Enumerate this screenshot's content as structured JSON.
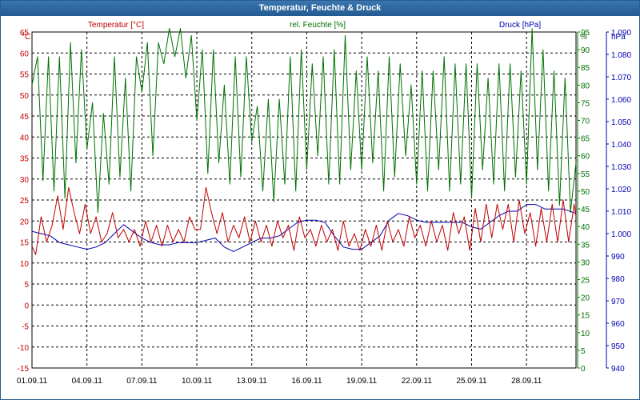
{
  "window": {
    "title": "Temperatur, Feuchte & Druck"
  },
  "colors": {
    "temperature": "#c00000",
    "humidity": "#007000",
    "pressure": "#0000b0",
    "grid": "#000000",
    "titlebar": "#2a5d8f"
  },
  "chart_data": {
    "type": "line",
    "grid": true,
    "x_ticks": [
      "01.09.11",
      "04.09.11",
      "07.09.11",
      "10.09.11",
      "13.09.11",
      "16.09.11",
      "19.09.11",
      "22.09.11",
      "25.09.11",
      "28.09.11"
    ],
    "xlim_days": [
      1,
      30.7
    ],
    "axes": {
      "left": {
        "unit": "°C",
        "ticks": [
          "65",
          "60",
          "55",
          "50",
          "45",
          "40",
          "35",
          "30",
          "25",
          "20",
          "15",
          "10",
          "5",
          "0",
          "-5",
          "-10",
          "-15"
        ],
        "ylim": [
          -15,
          65
        ]
      },
      "right1": {
        "unit": "%",
        "ticks": [
          "95",
          "90",
          "85",
          "80",
          "75",
          "70",
          "65",
          "60",
          "55",
          "50",
          "45",
          "40",
          "35",
          "30",
          "25",
          "20",
          "15",
          "10",
          "5",
          "0"
        ],
        "ylim": [
          0,
          95
        ]
      },
      "right2": {
        "unit": "hPa",
        "ticks": [
          "1.090",
          "1.080",
          "1.070",
          "1.060",
          "1.050",
          "1.040",
          "1.030",
          "1.020",
          "1.010",
          "1.000",
          "990",
          "980",
          "970",
          "960",
          "950",
          "940"
        ],
        "ylim": [
          940,
          1090
        ]
      }
    },
    "series": [
      {
        "name": "Temperatur [°C]",
        "axis": "left",
        "x": [
          1.0,
          1.2,
          1.5,
          1.8,
          2.1,
          2.4,
          2.7,
          3.0,
          3.3,
          3.6,
          3.9,
          4.2,
          4.5,
          4.8,
          5.1,
          5.4,
          5.7,
          6.0,
          6.3,
          6.6,
          6.9,
          7.2,
          7.5,
          7.8,
          8.1,
          8.4,
          8.7,
          9.0,
          9.3,
          9.6,
          9.9,
          10.2,
          10.5,
          10.8,
          11.1,
          11.4,
          11.7,
          12.0,
          12.3,
          12.6,
          12.9,
          13.2,
          13.5,
          13.8,
          14.1,
          14.4,
          14.7,
          15.0,
          15.3,
          15.6,
          15.9,
          16.2,
          16.5,
          16.8,
          17.1,
          17.4,
          17.7,
          18.0,
          18.3,
          18.6,
          18.9,
          19.2,
          19.5,
          19.8,
          20.1,
          20.4,
          20.7,
          21.0,
          21.3,
          21.6,
          21.9,
          22.2,
          22.5,
          22.8,
          23.1,
          23.4,
          23.7,
          24.0,
          24.3,
          24.6,
          24.9,
          25.2,
          25.5,
          25.8,
          26.1,
          26.4,
          26.7,
          27.0,
          27.3,
          27.6,
          27.9,
          28.2,
          28.5,
          28.8,
          29.1,
          29.4,
          29.7,
          30.0,
          30.3,
          30.6,
          30.7
        ],
        "values": [
          14,
          12,
          21,
          15,
          19,
          26,
          18,
          28,
          22,
          17,
          24,
          17,
          21,
          15,
          17,
          22,
          16,
          18,
          15,
          18,
          14,
          20,
          15,
          19,
          14,
          19,
          15,
          18,
          15,
          21,
          18,
          18,
          28,
          22,
          17,
          22,
          15,
          19,
          16,
          21,
          15,
          20,
          15,
          19,
          14,
          20,
          16,
          19,
          13,
          21,
          16,
          18,
          14,
          19,
          15,
          18,
          13,
          20,
          14,
          17,
          13,
          18,
          14,
          19,
          13,
          20,
          15,
          18,
          14,
          21,
          16,
          19,
          14,
          20,
          15,
          19,
          13,
          22,
          17,
          21,
          13,
          23,
          15,
          24,
          16,
          24,
          18,
          24,
          15,
          25,
          17,
          22,
          14,
          23,
          15,
          24,
          15,
          25,
          15,
          24,
          21
        ]
      },
      {
        "name": "rel. Feuchte [%]",
        "axis": "right1",
        "x": [
          1.0,
          1.3,
          1.6,
          1.9,
          2.2,
          2.5,
          2.8,
          3.1,
          3.4,
          3.7,
          4.0,
          4.3,
          4.6,
          4.9,
          5.2,
          5.5,
          5.8,
          6.1,
          6.4,
          6.7,
          7.0,
          7.3,
          7.6,
          7.9,
          8.2,
          8.5,
          8.8,
          9.1,
          9.4,
          9.7,
          10.0,
          10.3,
          10.6,
          10.9,
          11.2,
          11.5,
          11.8,
          12.1,
          12.4,
          12.7,
          13.0,
          13.3,
          13.6,
          13.9,
          14.2,
          14.5,
          14.8,
          15.1,
          15.4,
          15.7,
          16.0,
          16.3,
          16.6,
          16.9,
          17.2,
          17.5,
          17.8,
          18.1,
          18.4,
          18.7,
          19.0,
          19.3,
          19.6,
          19.9,
          20.2,
          20.5,
          20.8,
          21.1,
          21.4,
          21.7,
          22.0,
          22.3,
          22.6,
          22.9,
          23.2,
          23.5,
          23.8,
          24.1,
          24.4,
          24.7,
          25.0,
          25.3,
          25.6,
          25.9,
          26.2,
          26.5,
          26.8,
          27.1,
          27.4,
          27.7,
          28.0,
          28.3,
          28.6,
          28.9,
          29.2,
          29.5,
          29.8,
          30.1,
          30.4,
          30.7
        ],
        "values": [
          80,
          88,
          53,
          88,
          50,
          88,
          48,
          92,
          58,
          90,
          62,
          75,
          44,
          72,
          52,
          88,
          54,
          82,
          50,
          88,
          78,
          92,
          60,
          92,
          86,
          96,
          88,
          96,
          82,
          94,
          70,
          90,
          55,
          90,
          58,
          80,
          52,
          88,
          54,
          88,
          64,
          74,
          50,
          76,
          47,
          76,
          52,
          88,
          50,
          90,
          56,
          86,
          60,
          88,
          52,
          90,
          52,
          94,
          56,
          84,
          56,
          88,
          58,
          84,
          50,
          88,
          54,
          86,
          60,
          80,
          52,
          84,
          50,
          84,
          56,
          88,
          50,
          86,
          52,
          86,
          48,
          86,
          56,
          82,
          52,
          86,
          50,
          86,
          54,
          84,
          52,
          96,
          56,
          90,
          50,
          84,
          46,
          82,
          44,
          58
        ]
      },
      {
        "name": "Druck [hPa]",
        "axis": "right2",
        "x": [
          1.0,
          1.5,
          2.0,
          2.5,
          3.0,
          3.5,
          4.0,
          4.5,
          5.0,
          5.5,
          6.0,
          6.5,
          7.0,
          7.5,
          8.0,
          8.5,
          9.0,
          9.5,
          10.0,
          10.5,
          11.0,
          11.5,
          12.0,
          12.5,
          13.0,
          13.5,
          14.0,
          14.5,
          15.0,
          15.5,
          16.0,
          16.5,
          17.0,
          17.5,
          18.0,
          18.5,
          19.0,
          19.5,
          20.0,
          20.5,
          21.0,
          21.5,
          22.0,
          22.5,
          23.0,
          23.5,
          24.0,
          24.5,
          25.0,
          25.5,
          26.0,
          26.5,
          27.0,
          27.5,
          28.0,
          28.5,
          29.0,
          29.5,
          30.0,
          30.7
        ],
        "values": [
          1001,
          1000,
          999,
          996,
          995,
          994,
          993,
          994,
          996,
          1000,
          1004,
          1001,
          998,
          996,
          995,
          995,
          996,
          996,
          996,
          997,
          998,
          994,
          992,
          994,
          996,
          998,
          998,
          999,
          1002,
          1005,
          1006,
          1006,
          1005,
          999,
          994,
          993,
          993,
          996,
          999,
          1006,
          1009,
          1008,
          1006,
          1005,
          1005,
          1005,
          1005,
          1005,
          1003,
          1002,
          1005,
          1008,
          1010,
          1010,
          1013,
          1013,
          1011,
          1011,
          1011,
          1009
        ]
      }
    ]
  }
}
